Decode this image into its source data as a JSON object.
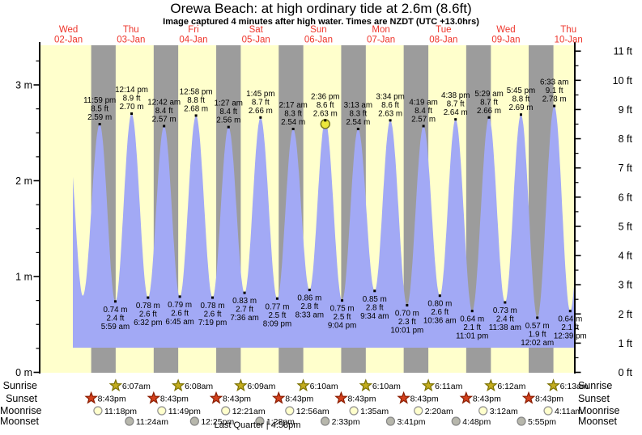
{
  "title": "Orewa Beach: at high  ordinary tide at 2.6m (8.6ft)",
  "subtitle": "Image captured 4 minutes after high water. Times are NZDT (UTC +13.0hrs)",
  "colors": {
    "day_band": "#ffffcc",
    "night_band": "#9c9c9c",
    "tide_fill": "#a2a9f5",
    "date_label": "#ee352b",
    "axis": "#000000",
    "current_marker_fill": "#ece73c",
    "current_marker_stroke": "#77751a",
    "sunrise_star_fill": "#c3ac1e",
    "sunrise_star_stroke": "#7a7000",
    "sunset_star_fill": "#d2401c",
    "sunset_star_stroke": "#8a1c00",
    "moonrise_fill": "#ffffcc",
    "moonrise_stroke": "#909090",
    "moonset_fill": "#b7b7ac",
    "moonset_stroke": "#858585"
  },
  "chart_data": {
    "type": "area",
    "title": "Orewa Beach: at high  ordinary tide at 2.6m (8.6ft)",
    "ylabel_left_unit": "m",
    "ylabel_right_unit": "ft",
    "ylim_m": [
      0,
      3.42
    ],
    "grid": false,
    "days": [
      {
        "dow": "Wed",
        "date": "02-Jan"
      },
      {
        "dow": "Thu",
        "date": "03-Jan"
      },
      {
        "dow": "Fri",
        "date": "04-Jan"
      },
      {
        "dow": "Sat",
        "date": "05-Jan"
      },
      {
        "dow": "Sun",
        "date": "06-Jan"
      },
      {
        "dow": "Mon",
        "date": "07-Jan"
      },
      {
        "dow": "Tue",
        "date": "08-Jan"
      },
      {
        "dow": "Wed",
        "date": "09-Jan"
      },
      {
        "dow": "Thu",
        "date": "10-Jan"
      }
    ],
    "y_axis_left": {
      "labels": [
        "0 m",
        "1 m",
        "2 m",
        "3 m"
      ]
    },
    "y_axis_right": {
      "labels": [
        "0 ft",
        "1 ft",
        "2 ft",
        "3 ft",
        "4 ft",
        "5 ft",
        "6 ft",
        "7 ft",
        "8 ft",
        "9 ft",
        "10 ft",
        "11 ft"
      ]
    },
    "tides": [
      {
        "type": "high",
        "day": 0,
        "time": "11:47 am",
        "height_m": 2.45,
        "annotated": false
      },
      {
        "type": "low",
        "day": 0,
        "time": "5:30 pm",
        "height_m": 0.8,
        "annotated": false
      },
      {
        "type": "high",
        "day": 0,
        "time": "11:59 pm",
        "height_m": 2.59,
        "height_ft": 8.5
      },
      {
        "type": "low",
        "day": 1,
        "time": "5:59 am",
        "height_m": 0.74,
        "height_ft": 2.4
      },
      {
        "type": "high",
        "day": 1,
        "time": "12:14 pm",
        "height_m": 2.7,
        "height_ft": 8.9
      },
      {
        "type": "low",
        "day": 1,
        "time": "6:32 pm",
        "height_m": 0.78,
        "height_ft": 2.6
      },
      {
        "type": "high",
        "day": 2,
        "time": "12:42 am",
        "height_m": 2.57,
        "height_ft": 8.4
      },
      {
        "type": "low",
        "day": 2,
        "time": "6:45 am",
        "height_m": 0.79,
        "height_ft": 2.6
      },
      {
        "type": "high",
        "day": 2,
        "time": "12:58 pm",
        "height_m": 2.68,
        "height_ft": 8.8
      },
      {
        "type": "low",
        "day": 2,
        "time": "7:19 pm",
        "height_m": 0.78,
        "height_ft": 2.6
      },
      {
        "type": "high",
        "day": 3,
        "time": "1:27 am",
        "height_m": 2.56,
        "height_ft": 8.4
      },
      {
        "type": "low",
        "day": 3,
        "time": "7:36 am",
        "height_m": 0.83,
        "height_ft": 2.7
      },
      {
        "type": "high",
        "day": 3,
        "time": "1:45 pm",
        "height_m": 2.66,
        "height_ft": 8.7
      },
      {
        "type": "low",
        "day": 3,
        "time": "8:09 pm",
        "height_m": 0.77,
        "height_ft": 2.5
      },
      {
        "type": "high",
        "day": 4,
        "time": "2:17 am",
        "height_m": 2.54,
        "height_ft": 8.3
      },
      {
        "type": "low",
        "day": 4,
        "time": "8:33 am",
        "height_m": 0.86,
        "height_ft": 2.8
      },
      {
        "type": "high",
        "day": 4,
        "time": "2:36 pm",
        "height_m": 2.63,
        "height_ft": 8.6,
        "current": true
      },
      {
        "type": "low",
        "day": 4,
        "time": "9:04 pm",
        "height_m": 0.75,
        "height_ft": 2.5
      },
      {
        "type": "high",
        "day": 5,
        "time": "3:13 am",
        "height_m": 2.54,
        "height_ft": 8.3
      },
      {
        "type": "low",
        "day": 5,
        "time": "9:34 am",
        "height_m": 0.85,
        "height_ft": 2.8
      },
      {
        "type": "high",
        "day": 5,
        "time": "3:34 pm",
        "height_m": 2.63,
        "height_ft": 8.6
      },
      {
        "type": "low",
        "day": 5,
        "time": "10:01 pm",
        "height_m": 0.7,
        "height_ft": 2.3
      },
      {
        "type": "high",
        "day": 6,
        "time": "4:19 am",
        "height_m": 2.57,
        "height_ft": 8.4
      },
      {
        "type": "low",
        "day": 6,
        "time": "10:36 am",
        "height_m": 0.8,
        "height_ft": 2.6
      },
      {
        "type": "high",
        "day": 6,
        "time": "4:38 pm",
        "height_m": 2.64,
        "height_ft": 8.7
      },
      {
        "type": "low",
        "day": 6,
        "time": "11:01 pm",
        "height_m": 0.64,
        "height_ft": 2.1
      },
      {
        "type": "high",
        "day": 7,
        "time": "5:29 am",
        "height_m": 2.66,
        "height_ft": 8.7
      },
      {
        "type": "low",
        "day": 7,
        "time": "11:38 am",
        "height_m": 0.73,
        "height_ft": 2.4
      },
      {
        "type": "high",
        "day": 7,
        "time": "5:45 pm",
        "height_m": 2.69,
        "height_ft": 8.8
      },
      {
        "type": "low",
        "day": 8,
        "time": "12:02 am",
        "height_m": 0.57,
        "height_ft": 1.9
      },
      {
        "type": "high",
        "day": 8,
        "time": "6:33 am",
        "height_m": 2.78,
        "height_ft": 9.1
      },
      {
        "type": "low",
        "day": 8,
        "time": "12:39 pm",
        "height_m": 0.64,
        "height_ft": 2.1
      },
      {
        "type": "high",
        "day": 8,
        "time": "6:55 pm",
        "height_m": 2.7,
        "annotated": false
      }
    ]
  },
  "astro": {
    "rows": [
      {
        "id": "sunrise",
        "label": "Sunrise",
        "icon": "sun-star",
        "events": [
          {
            "day": 1,
            "time": "6:07am"
          },
          {
            "day": 2,
            "time": "6:08am"
          },
          {
            "day": 3,
            "time": "6:09am"
          },
          {
            "day": 4,
            "time": "6:10am"
          },
          {
            "day": 5,
            "time": "6:10am"
          },
          {
            "day": 6,
            "time": "6:11am"
          },
          {
            "day": 7,
            "time": "6:12am"
          },
          {
            "day": 8,
            "time": "6:13am"
          }
        ]
      },
      {
        "id": "sunset",
        "label": "Sunset",
        "icon": "sun-star",
        "events": [
          {
            "day": 0,
            "time": "8:43pm"
          },
          {
            "day": 1,
            "time": "8:43pm"
          },
          {
            "day": 2,
            "time": "8:43pm"
          },
          {
            "day": 3,
            "time": "8:43pm"
          },
          {
            "day": 4,
            "time": "8:43pm"
          },
          {
            "day": 5,
            "time": "8:43pm"
          },
          {
            "day": 6,
            "time": "8:43pm"
          },
          {
            "day": 7,
            "time": "8:43pm"
          }
        ]
      },
      {
        "id": "moonrise",
        "label": "Moonrise",
        "icon": "moon-circle",
        "events": [
          {
            "day": 0,
            "time": "11:18pm"
          },
          {
            "day": 1,
            "time": "11:49pm"
          },
          {
            "day": 3,
            "time": "12:21am"
          },
          {
            "day": 4,
            "time": "12:56am"
          },
          {
            "day": 5,
            "time": "1:35am"
          },
          {
            "day": 6,
            "time": "2:20am"
          },
          {
            "day": 7,
            "time": "3:12am"
          },
          {
            "day": 8,
            "time": "4:11am"
          }
        ]
      },
      {
        "id": "moonset",
        "label": "Moonset",
        "icon": "moon-circle",
        "events": [
          {
            "day": 1,
            "time": "11:24am"
          },
          {
            "day": 2,
            "time": "12:25pm"
          },
          {
            "day": 3,
            "time": "1:28pm"
          },
          {
            "day": 4,
            "time": "2:33pm"
          },
          {
            "day": 5,
            "time": "3:41pm"
          },
          {
            "day": 6,
            "time": "4:48pm"
          },
          {
            "day": 7,
            "time": "5:55pm"
          }
        ]
      }
    ],
    "moon_phase": "Last Quarter | 4:58pm"
  }
}
